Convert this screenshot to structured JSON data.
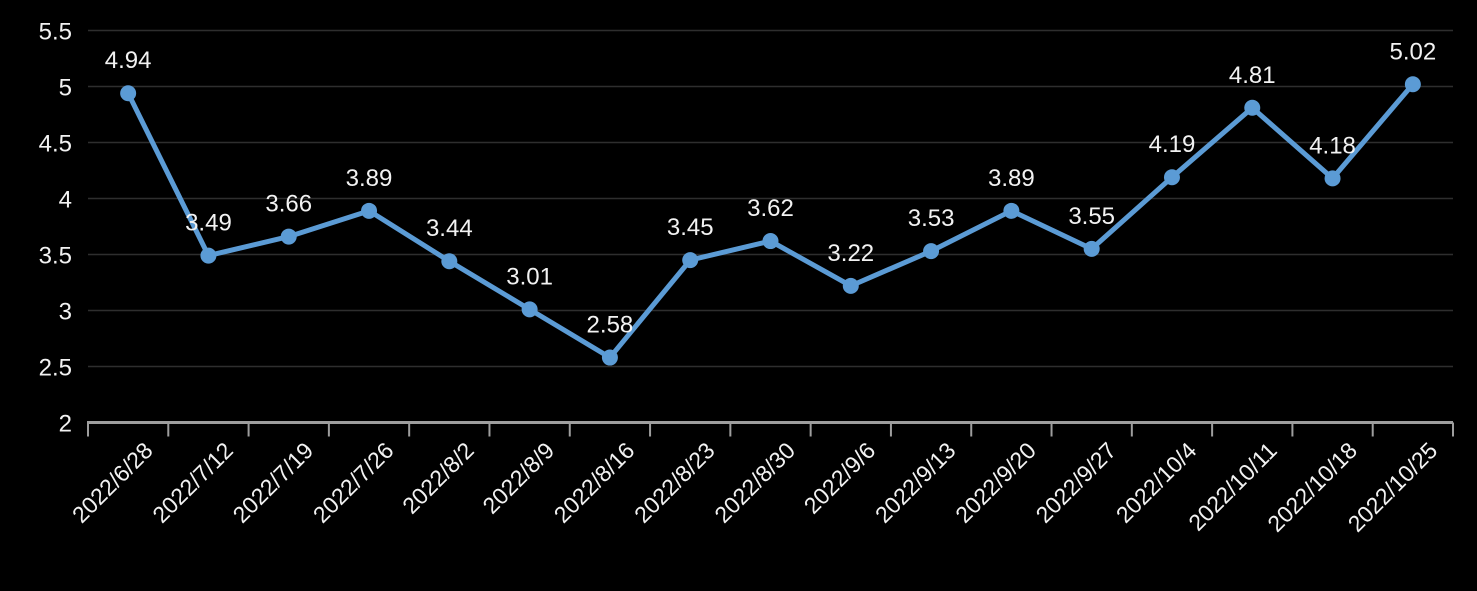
{
  "chart_data": {
    "type": "line",
    "title": "",
    "xlabel": "",
    "ylabel": "",
    "categories": [
      "2022/6/28",
      "2022/7/12",
      "2022/7/19",
      "2022/7/26",
      "2022/8/2",
      "2022/8/9",
      "2022/8/16",
      "2022/8/23",
      "2022/8/30",
      "2022/9/6",
      "2022/9/13",
      "2022/9/20",
      "2022/9/27",
      "2022/10/4",
      "2022/10/11",
      "2022/10/18",
      "2022/10/25"
    ],
    "values": [
      4.94,
      3.49,
      3.66,
      3.89,
      3.44,
      3.01,
      2.58,
      3.45,
      3.62,
      3.22,
      3.53,
      3.89,
      3.55,
      4.19,
      4.81,
      4.18,
      5.02
    ],
    "value_labels": [
      "4.94",
      "3.49",
      "3.66",
      "3.89",
      "3.44",
      "3.01",
      "2.58",
      "3.45",
      "3.62",
      "3.22",
      "3.53",
      "3.89",
      "3.55",
      "4.19",
      "4.81",
      "4.18",
      "5.02"
    ],
    "ylim": [
      2,
      5.5
    ],
    "y_ticks": [
      "5.5",
      "5",
      "4.5",
      "4",
      "3.5",
      "3",
      "2.5",
      "2"
    ],
    "grid": true,
    "legend": false,
    "data_labels_shown": true,
    "x_label_rotation_deg": -45,
    "colors": {
      "background": "#000000",
      "line": "#5B9BD5",
      "marker": "#5B9BD5",
      "label_text": "#F2F2F2",
      "axis_line": "#9E9E9E",
      "gridline": "#2E2E2E"
    }
  }
}
